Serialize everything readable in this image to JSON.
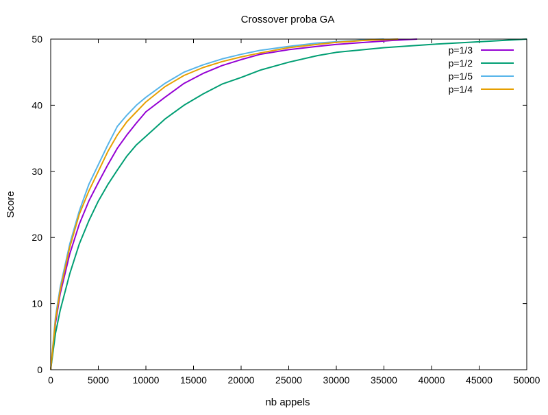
{
  "chart_data": {
    "type": "line",
    "title": "Crossover proba GA",
    "xlabel": "nb appels",
    "ylabel": "Score",
    "xlim": [
      0,
      50000
    ],
    "ylim": [
      0,
      50
    ],
    "xticks": [
      0,
      5000,
      10000,
      15000,
      20000,
      25000,
      30000,
      35000,
      40000,
      45000,
      50000
    ],
    "yticks": [
      0,
      10,
      20,
      30,
      40,
      50
    ],
    "grid": false,
    "legend_position": "top-right",
    "series": [
      {
        "name": "p=1/3",
        "color": "#9400d3",
        "x": [
          0,
          500,
          1000,
          2000,
          3000,
          4000,
          5000,
          6000,
          7000,
          8000,
          9000,
          10000,
          12000,
          14000,
          16000,
          18000,
          20000,
          22000,
          25000,
          28000,
          30000,
          33000,
          36000,
          38500
        ],
        "y": [
          0,
          7,
          11.5,
          17.5,
          22,
          25.5,
          28.3,
          31,
          33.5,
          35.5,
          37.3,
          39,
          41.2,
          43.3,
          44.8,
          46,
          46.9,
          47.7,
          48.4,
          48.9,
          49.2,
          49.5,
          49.8,
          50
        ]
      },
      {
        "name": "p=1/2",
        "color": "#009e73",
        "x": [
          0,
          500,
          1000,
          2000,
          3000,
          4000,
          5000,
          6000,
          7000,
          8000,
          9000,
          10000,
          12000,
          14000,
          16000,
          18000,
          20000,
          22000,
          25000,
          28000,
          30000,
          35000,
          40000,
          45000,
          50000
        ],
        "y": [
          0,
          5.5,
          9,
          14.5,
          19,
          22.5,
          25.5,
          28,
          30.2,
          32.3,
          34,
          35.3,
          37.9,
          40,
          41.7,
          43.2,
          44.2,
          45.3,
          46.5,
          47.5,
          48,
          48.7,
          49.2,
          49.6,
          50
        ]
      },
      {
        "name": "p=1/5",
        "color": "#56b4e9",
        "x": [
          0,
          500,
          1000,
          2000,
          3000,
          4000,
          5000,
          6000,
          7000,
          8000,
          9000,
          10000,
          12000,
          14000,
          16000,
          18000,
          20000,
          22000,
          25000,
          28000,
          30000,
          33000,
          35000
        ],
        "y": [
          0,
          8,
          12.5,
          19,
          24,
          28,
          31,
          34,
          36.8,
          38.5,
          40,
          41.2,
          43.3,
          45,
          46.1,
          47,
          47.7,
          48.3,
          48.9,
          49.4,
          49.6,
          49.9,
          50
        ]
      },
      {
        "name": "p=1/4",
        "color": "#e69f00",
        "x": [
          0,
          500,
          1000,
          2000,
          3000,
          4000,
          5000,
          6000,
          7000,
          8000,
          9000,
          10000,
          12000,
          14000,
          16000,
          18000,
          20000,
          22000,
          25000,
          28000,
          30000,
          33000,
          36500
        ],
        "y": [
          0,
          7.5,
          12,
          18.5,
          23.5,
          27,
          30,
          33,
          35.5,
          37.5,
          39,
          40.5,
          42.8,
          44.5,
          45.7,
          46.6,
          47.3,
          47.9,
          48.7,
          49.2,
          49.5,
          49.8,
          50
        ]
      }
    ]
  }
}
